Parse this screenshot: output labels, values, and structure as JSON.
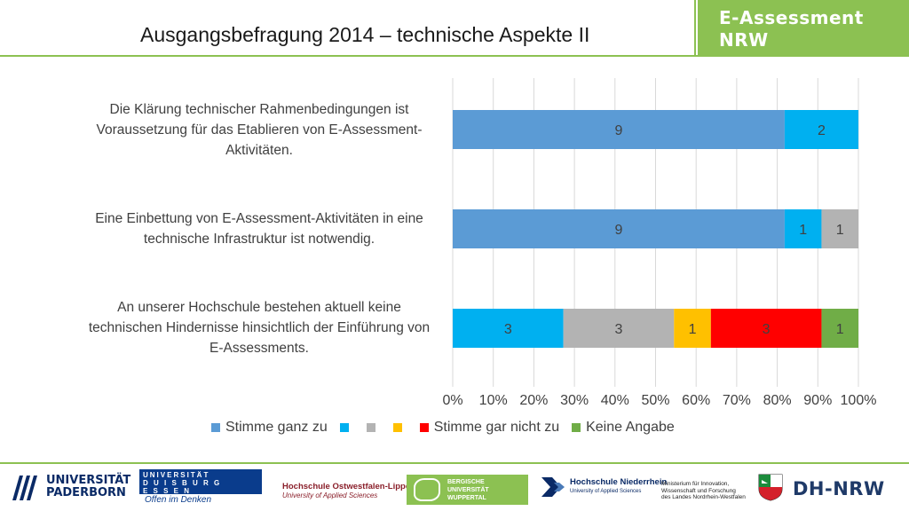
{
  "slide": {
    "title": "Ausgangsbefragung 2014 – technische Aspekte II",
    "brand": [
      "E-Assessment",
      "NRW"
    ]
  },
  "questions": [
    [
      "Die Klärung technischer Rahmenbedingungen ist",
      "Voraussetzung für das Etablieren von E-Assessment-",
      "Aktivitäten."
    ],
    [
      "Eine Einbettung von E-Assessment-Aktivitäten in eine",
      "technische Infrastruktur ist notwendig."
    ],
    [
      "An unserer Hochschule bestehen aktuell keine",
      "technischen Hindernisse hinsichtlich der Einführung von",
      "E-Assessments."
    ]
  ],
  "chart_data": {
    "type": "bar",
    "orientation": "horizontal",
    "stacked": "100%",
    "xlim": [
      0,
      100
    ],
    "xticks": [
      "0%",
      "10%",
      "20%",
      "30%",
      "40%",
      "50%",
      "60%",
      "70%",
      "80%",
      "90%",
      "100%"
    ],
    "grid": true,
    "legend": "bottom",
    "series": [
      {
        "name": "Stimme ganz zu",
        "color": "#5b9bd5",
        "values": [
          9,
          9,
          0
        ]
      },
      {
        "name": "",
        "color": "#00b0f0",
        "values": [
          2,
          1,
          3
        ]
      },
      {
        "name": "",
        "color": "#b3b3b3",
        "values": [
          0,
          1,
          3
        ]
      },
      {
        "name": "",
        "color": "#ffc000",
        "values": [
          0,
          0,
          1
        ]
      },
      {
        "name": "Stimme gar nicht zu",
        "color": "#ff0000",
        "values": [
          0,
          0,
          3
        ]
      },
      {
        "name": "Keine Angabe",
        "color": "#70ad47",
        "values": [
          0,
          0,
          1
        ]
      }
    ]
  },
  "footer": {
    "upb": [
      "UNIVERSITÄT",
      "PADERBORN"
    ],
    "ude": [
      "UNIVERSITÄT",
      "D U I S B U R G",
      "E S S E N"
    ],
    "ude_slogan": "Offen im Denken",
    "hsowl": [
      "Hochschule Ostwestfalen-Lippe",
      "University of Applied Sciences"
    ],
    "buw": [
      "BERGISCHE",
      "UNIVERSITÄT",
      "WUPPERTAL"
    ],
    "hsnr": [
      "Hochschule Niederrhein",
      "University of Applied Sciences"
    ],
    "ministry": [
      "Ministerium für Innovation,",
      "Wissenschaft und Forschung",
      "des Landes Nordrhein-Westfalen"
    ],
    "dhnrw": "DH-NRW"
  }
}
